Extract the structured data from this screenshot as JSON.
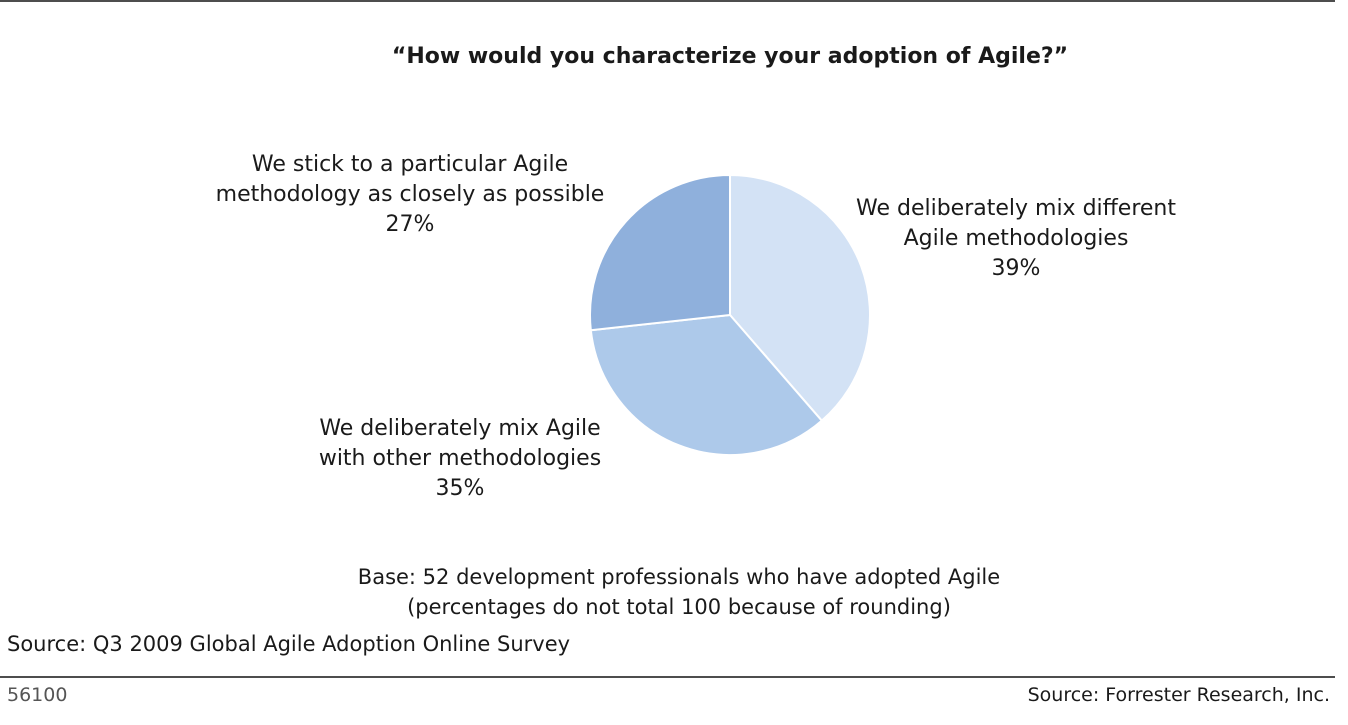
{
  "chart_data": {
    "type": "pie",
    "title": "“How would you characterize your adoption of Agile?”",
    "slices": [
      {
        "label_lines": [
          "We deliberately mix different",
          "Agile methodologies"
        ],
        "value": 39,
        "value_label": "39%",
        "color": "#d3e2f5"
      },
      {
        "label_lines": [
          "We deliberately mix Agile",
          "with other methodologies"
        ],
        "value": 35,
        "value_label": "35%",
        "color": "#adc9ea"
      },
      {
        "label_lines": [
          "We stick to a particular Agile",
          "methodology as closely as possible"
        ],
        "value": 27,
        "value_label": "27%",
        "color": "#8fb0dc"
      }
    ],
    "stroke_color": "#ffffff"
  },
  "notes": {
    "base_line1": "Base: 52 development professionals who have adopted Agile",
    "base_line2": "(percentages do not total 100 because of rounding)"
  },
  "source": "Source: Q3 2009 Global Agile Adoption Online Survey",
  "footer": {
    "figure_id": "56100",
    "credit": "Source: Forrester Research, Inc."
  }
}
